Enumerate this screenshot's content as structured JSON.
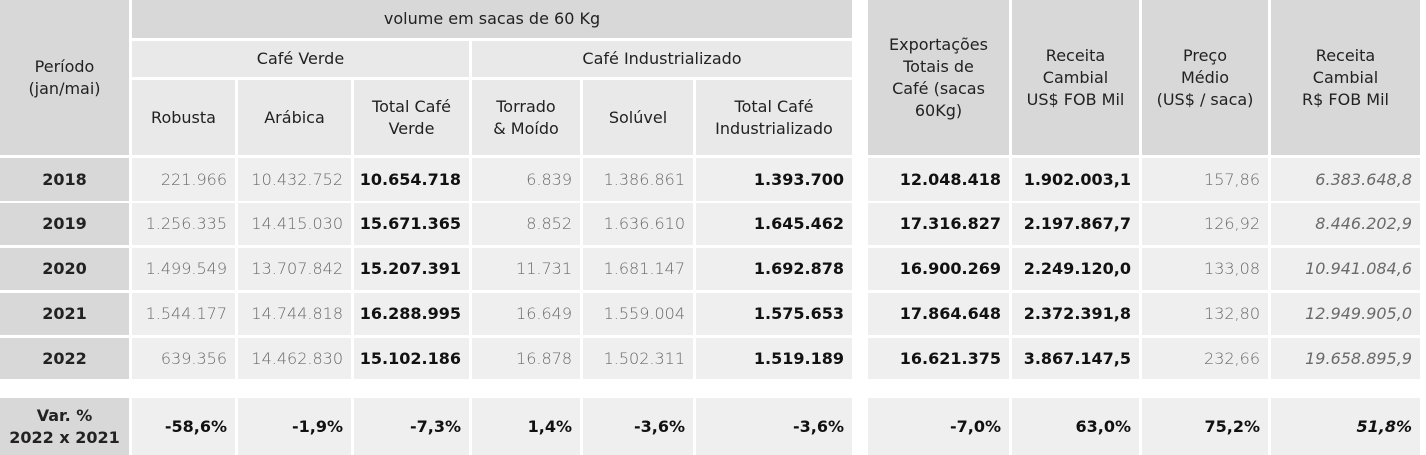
{
  "header": {
    "periodo": "Período\n(jan/mai)",
    "volume": "volume em sacas de 60 Kg",
    "cafe_verde": "Café Verde",
    "cafe_industrializado": "Café Industrializado",
    "robusta": "Robusta",
    "arabica": "Arábica",
    "total_verde": "Total Café\nVerde",
    "torrado": "Torrado\n& Moído",
    "soluvel": "Solúvel",
    "total_ind": "Total Café\nIndustrializado",
    "exportacoes": "Exportações\nTotais de\nCafé (sacas\n60Kg)",
    "receita_usd": "Receita\nCambial\nUS$ FOB Mil",
    "preco": "Preço\nMédio\n(US$ / saca)",
    "receita_brl": "Receita\nCambial\nR$ FOB Mil"
  },
  "rows": [
    {
      "year": "2018",
      "robusta": "221.966",
      "arabica": "10.432.752",
      "total_verde": "10.654.718",
      "torrado": "6.839",
      "soluvel": "1.386.861",
      "total_ind": "1.393.700",
      "exportacoes": "12.048.418",
      "receita_usd": "1.902.003,1",
      "preco": "157,86",
      "receita_brl": "6.383.648,8"
    },
    {
      "year": "2019",
      "robusta": "1.256.335",
      "arabica": "14.415.030",
      "total_verde": "15.671.365",
      "torrado": "8.852",
      "soluvel": "1.636.610",
      "total_ind": "1.645.462",
      "exportacoes": "17.316.827",
      "receita_usd": "2.197.867,7",
      "preco": "126,92",
      "receita_brl": "8.446.202,9"
    },
    {
      "year": "2020",
      "robusta": "1.499.549",
      "arabica": "13.707.842",
      "total_verde": "15.207.391",
      "torrado": "11.731",
      "soluvel": "1.681.147",
      "total_ind": "1.692.878",
      "exportacoes": "16.900.269",
      "receita_usd": "2.249.120,0",
      "preco": "133,08",
      "receita_brl": "10.941.084,6"
    },
    {
      "year": "2021",
      "robusta": "1.544.177",
      "arabica": "14.744.818",
      "total_verde": "16.288.995",
      "torrado": "16.649",
      "soluvel": "1.559.004",
      "total_ind": "1.575.653",
      "exportacoes": "17.864.648",
      "receita_usd": "2.372.391,8",
      "preco": "132,80",
      "receita_brl": "12.949.905,0"
    },
    {
      "year": "2022",
      "robusta": "639.356",
      "arabica": "14.462.830",
      "total_verde": "15.102.186",
      "torrado": "16.878",
      "soluvel": "1.502.311",
      "total_ind": "1.519.189",
      "exportacoes": "16.621.375",
      "receita_usd": "3.867.147,5",
      "preco": "232,66",
      "receita_brl": "19.658.895,9"
    }
  ],
  "variation": {
    "label": "Var. %\n2022 x 2021",
    "robusta": "-58,6%",
    "arabica": "-1,9%",
    "total_verde": "-7,3%",
    "torrado": "1,4%",
    "soluvel": "-3,6%",
    "total_ind": "-3,6%",
    "exportacoes": "-7,0%",
    "receita_usd": "63,0%",
    "preco": "75,2%",
    "receita_brl": "51,8%"
  }
}
